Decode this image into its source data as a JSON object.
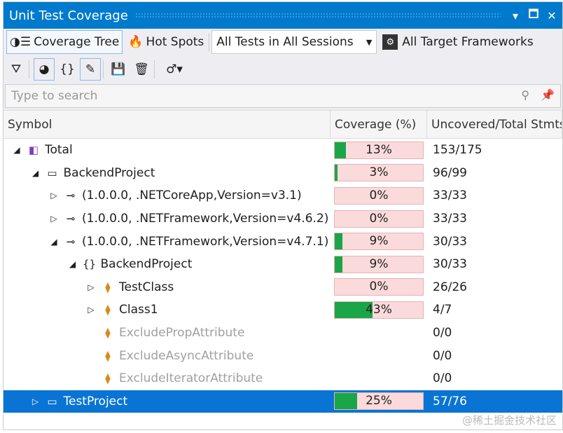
{
  "window": {
    "title": "Unit Test Coverage"
  },
  "toolbar": {
    "coverage_tree": "Coverage Tree",
    "hot_spots": "Hot Spots",
    "sessions": "All Tests in All Sessions",
    "frameworks": "All Target Frameworks"
  },
  "search": {
    "placeholder": "Type to search"
  },
  "columns": {
    "symbol": "Symbol",
    "coverage": "Coverage (%)",
    "uncovered": "Uncovered/Total Stmts"
  },
  "rows": [
    {
      "level": 0,
      "expander": "expanded",
      "icon": "solution-icon",
      "label": "Total",
      "coverage": 13,
      "coverage_label": "13%",
      "stmts": "153/175"
    },
    {
      "level": 1,
      "expander": "expanded",
      "icon": "project-icon",
      "label": "BackendProject",
      "coverage": 3,
      "coverage_label": "3%",
      "stmts": "96/99"
    },
    {
      "level": 2,
      "expander": "collapsed",
      "icon": "assembly-icon",
      "label": "(1.0.0.0, .NETCoreApp,Version=v3.1)",
      "coverage": 0,
      "coverage_label": "0%",
      "stmts": "33/33"
    },
    {
      "level": 2,
      "expander": "collapsed",
      "icon": "assembly-icon",
      "label": "(1.0.0.0, .NETFramework,Version=v4.6.2)",
      "coverage": 0,
      "coverage_label": "0%",
      "stmts": "33/33"
    },
    {
      "level": 2,
      "expander": "expanded",
      "icon": "assembly-icon",
      "label": "(1.0.0.0, .NETFramework,Version=v4.7.1)",
      "coverage": 9,
      "coverage_label": "9%",
      "stmts": "30/33"
    },
    {
      "level": 3,
      "expander": "expanded",
      "icon": "namespace-icon",
      "label": "BackendProject",
      "coverage": 9,
      "coverage_label": "9%",
      "stmts": "30/33"
    },
    {
      "level": 4,
      "expander": "collapsed",
      "icon": "class-icon",
      "label": "TestClass",
      "coverage": 0,
      "coverage_label": "0%",
      "stmts": "26/26"
    },
    {
      "level": 4,
      "expander": "collapsed",
      "icon": "class-icon",
      "label": "Class1",
      "coverage": 43,
      "coverage_label": "43%",
      "stmts": "4/7"
    },
    {
      "level": 4,
      "expander": "none",
      "icon": "class-icon",
      "label": "ExcludePropAttribute",
      "coverage": null,
      "coverage_label": "",
      "stmts": "0/0",
      "dim": true
    },
    {
      "level": 4,
      "expander": "none",
      "icon": "class-icon",
      "label": "ExcludeAsyncAttribute",
      "coverage": null,
      "coverage_label": "",
      "stmts": "0/0",
      "dim": true
    },
    {
      "level": 4,
      "expander": "none",
      "icon": "class-icon",
      "label": "ExcludeIteratorAttribute",
      "coverage": null,
      "coverage_label": "",
      "stmts": "0/0",
      "dim": true
    },
    {
      "level": 1,
      "expander": "collapsed",
      "icon": "project-icon",
      "label": "TestProject",
      "coverage": 25,
      "coverage_label": "25%",
      "stmts": "57/76",
      "selected": true
    }
  ],
  "watermark": "@稀土掘金技术社区",
  "colors": {
    "title_bar": "#007acc",
    "covered": "#1aa548",
    "uncovered": "#fadada",
    "selection": "#0a74d4"
  }
}
